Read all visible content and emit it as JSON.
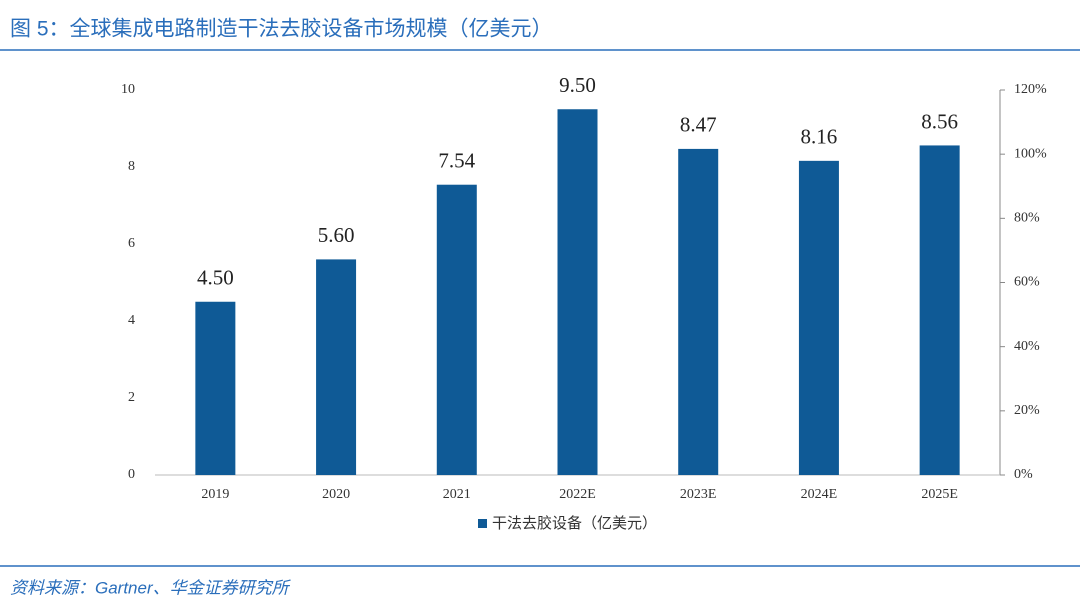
{
  "chart_data": {
    "type": "bar",
    "title": "图 5：全球集成电路制造干法去胶设备市场规模（亿美元）",
    "source": "资料来源：Gartner、华金证券研究所",
    "categories": [
      "2019",
      "2020",
      "2021",
      "2022E",
      "2023E",
      "2024E",
      "2025E"
    ],
    "series": [
      {
        "name": "干法去胶设备（亿美元）",
        "color": "#0f5a96",
        "values": [
          4.5,
          5.6,
          7.54,
          9.5,
          8.47,
          8.16,
          8.56
        ],
        "value_labels": [
          "4.50",
          "5.60",
          "7.54",
          "9.50",
          "8.47",
          "8.16",
          "8.56"
        ]
      }
    ],
    "ylim": [
      0,
      10
    ],
    "yticks": [
      0,
      2,
      4,
      6,
      8,
      10
    ],
    "y2lim": [
      0,
      120
    ],
    "y2ticks": [
      {
        "value": 0,
        "label": "0%"
      },
      {
        "value": 20,
        "label": "20%"
      },
      {
        "value": 40,
        "label": "40%"
      },
      {
        "value": 60,
        "label": "60%"
      },
      {
        "value": 80,
        "label": "80%"
      },
      {
        "value": 100,
        "label": "100%"
      },
      {
        "value": 120,
        "label": "120%"
      }
    ],
    "legend": "bottom"
  }
}
